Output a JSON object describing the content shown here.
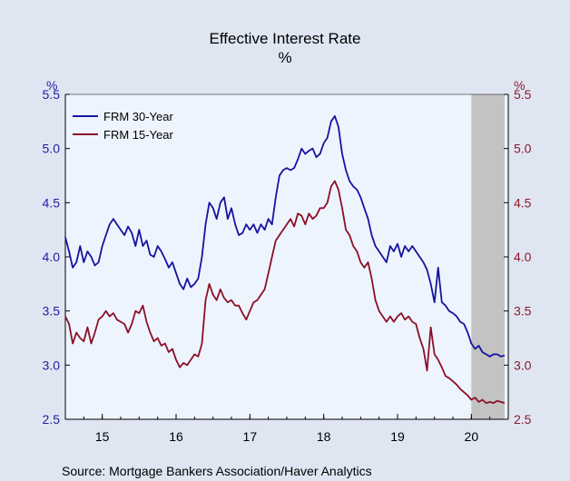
{
  "chart_data": {
    "type": "line",
    "title": "Effective Interest Rate",
    "subtitle": "%",
    "ylabel_left": "%",
    "ylabel_right": "%",
    "ylim": [
      2.5,
      5.5
    ],
    "yticks": [
      2.5,
      3.0,
      3.5,
      4.0,
      4.5,
      5.0,
      5.5
    ],
    "ytick_labels": [
      "2.5",
      "3.0",
      "3.5",
      "4.0",
      "4.5",
      "5.0",
      "5.5"
    ],
    "xlim": [
      2014.5,
      2020.5
    ],
    "xtick_labels": [
      "15",
      "16",
      "17",
      "18",
      "19",
      "20"
    ],
    "recession_shading": [
      2020.0,
      2020.45
    ],
    "legend_position": "top-left",
    "grid": false,
    "series": [
      {
        "name": "FRM 30-Year",
        "color": "#1414a0",
        "x": [
          2014.5,
          2014.55,
          2014.6,
          2014.65,
          2014.7,
          2014.75,
          2014.8,
          2014.85,
          2014.9,
          2014.95,
          2015.0,
          2015.05,
          2015.1,
          2015.15,
          2015.2,
          2015.25,
          2015.3,
          2015.35,
          2015.4,
          2015.45,
          2015.5,
          2015.55,
          2015.6,
          2015.65,
          2015.7,
          2015.75,
          2015.8,
          2015.85,
          2015.9,
          2015.95,
          2016.0,
          2016.05,
          2016.1,
          2016.15,
          2016.2,
          2016.25,
          2016.3,
          2016.35,
          2016.4,
          2016.45,
          2016.5,
          2016.55,
          2016.6,
          2016.65,
          2016.7,
          2016.75,
          2016.8,
          2016.85,
          2016.9,
          2016.95,
          2017.0,
          2017.05,
          2017.1,
          2017.15,
          2017.2,
          2017.25,
          2017.3,
          2017.35,
          2017.4,
          2017.45,
          2017.5,
          2017.55,
          2017.6,
          2017.65,
          2017.7,
          2017.75,
          2017.8,
          2017.85,
          2017.9,
          2017.95,
          2018.0,
          2018.05,
          2018.1,
          2018.15,
          2018.2,
          2018.25,
          2018.3,
          2018.35,
          2018.4,
          2018.45,
          2018.5,
          2018.55,
          2018.6,
          2018.65,
          2018.7,
          2018.75,
          2018.8,
          2018.85,
          2018.9,
          2018.95,
          2019.0,
          2019.05,
          2019.1,
          2019.15,
          2019.2,
          2019.25,
          2019.3,
          2019.35,
          2019.4,
          2019.45,
          2019.5,
          2019.55,
          2019.6,
          2019.65,
          2019.7,
          2019.75,
          2019.8,
          2019.85,
          2019.9,
          2019.95,
          2020.0,
          2020.05,
          2020.1,
          2020.15,
          2020.2,
          2020.25,
          2020.3,
          2020.35,
          2020.4,
          2020.45
        ],
        "values": [
          4.18,
          4.05,
          3.9,
          3.95,
          4.1,
          3.95,
          4.05,
          4.0,
          3.92,
          3.95,
          4.1,
          4.2,
          4.3,
          4.35,
          4.3,
          4.25,
          4.2,
          4.28,
          4.22,
          4.1,
          4.25,
          4.1,
          4.15,
          4.02,
          4.0,
          4.1,
          4.05,
          3.98,
          3.9,
          3.95,
          3.85,
          3.75,
          3.7,
          3.8,
          3.72,
          3.75,
          3.8,
          4.0,
          4.3,
          4.5,
          4.45,
          4.35,
          4.5,
          4.55,
          4.35,
          4.45,
          4.3,
          4.2,
          4.22,
          4.3,
          4.25,
          4.3,
          4.22,
          4.3,
          4.25,
          4.35,
          4.3,
          4.55,
          4.75,
          4.8,
          4.82,
          4.8,
          4.82,
          4.9,
          5.0,
          4.95,
          4.98,
          5.0,
          4.92,
          4.95,
          5.05,
          5.1,
          5.25,
          5.3,
          5.2,
          4.95,
          4.8,
          4.7,
          4.65,
          4.62,
          4.55,
          4.45,
          4.35,
          4.2,
          4.1,
          4.05,
          4.0,
          3.95,
          4.1,
          4.05,
          4.12,
          4.0,
          4.1,
          4.05,
          4.1,
          4.05,
          4.0,
          3.95,
          3.88,
          3.75,
          3.58,
          3.9,
          3.58,
          3.55,
          3.5,
          3.48,
          3.45,
          3.4,
          3.38,
          3.3,
          3.2,
          3.15,
          3.18,
          3.12,
          3.1,
          3.08,
          3.1,
          3.1,
          3.08,
          3.09
        ]
      },
      {
        "name": "FRM 15-Year",
        "color": "#8c0f28",
        "x": [
          2014.5,
          2014.55,
          2014.6,
          2014.65,
          2014.7,
          2014.75,
          2014.8,
          2014.85,
          2014.9,
          2014.95,
          2015.0,
          2015.05,
          2015.1,
          2015.15,
          2015.2,
          2015.25,
          2015.3,
          2015.35,
          2015.4,
          2015.45,
          2015.5,
          2015.55,
          2015.6,
          2015.65,
          2015.7,
          2015.75,
          2015.8,
          2015.85,
          2015.9,
          2015.95,
          2016.0,
          2016.05,
          2016.1,
          2016.15,
          2016.2,
          2016.25,
          2016.3,
          2016.35,
          2016.4,
          2016.45,
          2016.5,
          2016.55,
          2016.6,
          2016.65,
          2016.7,
          2016.75,
          2016.8,
          2016.85,
          2016.9,
          2016.95,
          2017.0,
          2017.05,
          2017.1,
          2017.15,
          2017.2,
          2017.25,
          2017.3,
          2017.35,
          2017.4,
          2017.45,
          2017.5,
          2017.55,
          2017.6,
          2017.65,
          2017.7,
          2017.75,
          2017.8,
          2017.85,
          2017.9,
          2017.95,
          2018.0,
          2018.05,
          2018.1,
          2018.15,
          2018.2,
          2018.25,
          2018.3,
          2018.35,
          2018.4,
          2018.45,
          2018.5,
          2018.55,
          2018.6,
          2018.65,
          2018.7,
          2018.75,
          2018.8,
          2018.85,
          2018.9,
          2018.95,
          2019.0,
          2019.05,
          2019.1,
          2019.15,
          2019.2,
          2019.25,
          2019.3,
          2019.35,
          2019.4,
          2019.45,
          2019.5,
          2019.55,
          2019.6,
          2019.65,
          2019.7,
          2019.75,
          2019.8,
          2019.85,
          2019.9,
          2019.95,
          2020.0,
          2020.05,
          2020.1,
          2020.15,
          2020.2,
          2020.25,
          2020.3,
          2020.35,
          2020.4,
          2020.45
        ],
        "values": [
          3.45,
          3.38,
          3.2,
          3.3,
          3.25,
          3.22,
          3.35,
          3.2,
          3.3,
          3.42,
          3.45,
          3.5,
          3.45,
          3.48,
          3.42,
          3.4,
          3.38,
          3.3,
          3.38,
          3.5,
          3.48,
          3.55,
          3.4,
          3.3,
          3.22,
          3.25,
          3.18,
          3.2,
          3.12,
          3.15,
          3.05,
          2.98,
          3.02,
          3.0,
          3.05,
          3.1,
          3.08,
          3.2,
          3.6,
          3.75,
          3.65,
          3.6,
          3.7,
          3.62,
          3.58,
          3.6,
          3.55,
          3.55,
          3.48,
          3.42,
          3.5,
          3.58,
          3.6,
          3.65,
          3.7,
          3.85,
          4.0,
          4.15,
          4.2,
          4.25,
          4.3,
          4.35,
          4.28,
          4.4,
          4.38,
          4.3,
          4.4,
          4.35,
          4.38,
          4.45,
          4.45,
          4.5,
          4.65,
          4.7,
          4.62,
          4.45,
          4.25,
          4.2,
          4.1,
          4.05,
          3.95,
          3.9,
          3.95,
          3.8,
          3.6,
          3.5,
          3.45,
          3.4,
          3.45,
          3.4,
          3.45,
          3.48,
          3.42,
          3.45,
          3.4,
          3.38,
          3.25,
          3.15,
          2.95,
          3.35,
          3.1,
          3.05,
          2.98,
          2.9,
          2.88,
          2.85,
          2.82,
          2.78,
          2.75,
          2.72,
          2.68,
          2.7,
          2.66,
          2.68,
          2.65,
          2.66,
          2.65,
          2.67,
          2.66,
          2.65
        ]
      }
    ]
  },
  "source": "Source:  Mortgage Bankers Association/Haver Analytics",
  "colors": {
    "page_background": "#dfe6f2",
    "plot_background": "#eef4fd",
    "recession_shading": "#c3c3c3",
    "left_axis": "#1f1fa0",
    "right_axis": "#8c1a2a"
  }
}
